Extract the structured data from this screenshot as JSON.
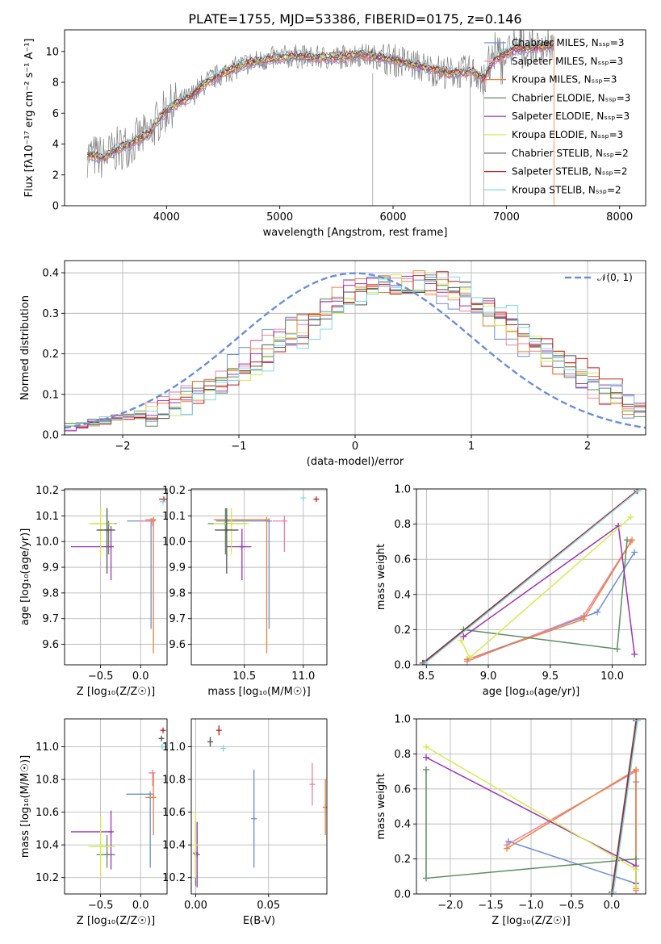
{
  "title": "PLATE=1755, MJD=53386, FIBERID=0175, z=0.146",
  "colors": {
    "Chabrier MILES": "#6b8fd6",
    "Salpeter MILES": "#ee82a8",
    "Kroupa MILES": "#f0813a",
    "Chabrier ELODIE": "#5e8e5e",
    "Salpeter ELODIE": "#9b35b6",
    "Kroupa ELODIE": "#d4ec4e",
    "Chabrier STELIB": "#555555",
    "Salpeter STELIB": "#c21f1f",
    "Kroupa STELIB": "#80d8e6",
    "data": "#808080"
  },
  "chart_data": [
    {
      "id": "spectrum",
      "type": "line",
      "xlabel": "wavelength [Angstrom, rest frame]",
      "ylabel": "Flux [fλ10⁻¹⁷ erg cm⁻² s⁻¹ A⁻¹]",
      "xlim": [
        3100,
        8230
      ],
      "ylim": [
        0,
        11.4
      ],
      "xticks": [
        4000,
        5000,
        6000,
        7000,
        8000
      ],
      "yticks": [
        0,
        2,
        4,
        6,
        8,
        10
      ],
      "legend_position": "top-right",
      "legend": [
        "Chabrier MILES, N_SSP=3",
        "Salpeter MILES, N_SSP=3",
        "Kroupa MILES, N_SSP=3",
        "Chabrier ELODIE, N_SSP=3",
        "Salpeter ELODIE, N_SSP=3",
        "Kroupa ELODIE, N_SSP=3",
        "Chabrier STELIB, N_SSP=2",
        "Salpeter STELIB, N_SSP=2",
        "Kroupa STELIB, N_SSP=2"
      ],
      "continuum": {
        "x": [
          3300,
          3450,
          3550,
          3700,
          3850,
          3950,
          4050,
          4200,
          4350,
          4500,
          4700,
          4900,
          5100,
          5300,
          5500,
          5700,
          5900,
          6100,
          6300,
          6500,
          6700,
          6800,
          6900,
          7000,
          7100,
          7200,
          7300,
          7400
        ],
        "y": [
          3.3,
          3.1,
          3.6,
          4.1,
          4.7,
          5.8,
          6.5,
          7.0,
          8.0,
          8.6,
          9.2,
          9.5,
          9.7,
          9.6,
          9.6,
          9.8,
          9.6,
          9.3,
          8.9,
          8.6,
          8.7,
          8.2,
          9.5,
          9.9,
          10.2,
          10.2,
          10.3,
          10.4
        ]
      }
    },
    {
      "id": "residuals",
      "type": "line",
      "xlabel": "(data-model)/error",
      "ylabel": "Normed distribution",
      "xlim": [
        -2.5,
        2.5
      ],
      "ylim": [
        0,
        0.43
      ],
      "xticks": [
        -2,
        -1,
        0,
        1,
        2
      ],
      "yticks": [
        0.0,
        0.1,
        0.2,
        0.3,
        0.4
      ],
      "legend": [
        "𝒩(0, 1)"
      ],
      "legend_position": "top-right",
      "histogram_mean": 0.45,
      "histogram_sigma": 1.08
    },
    {
      "id": "age_Z",
      "type": "scatter",
      "xlabel": "Z [log₁₀(Z/Z☉)]",
      "ylabel": "age  [log₁₀(age/yr)]",
      "xlim": [
        -0.95,
        0.33
      ],
      "ylim": [
        9.52,
        10.205
      ],
      "xticks": [
        -0.5,
        0.0
      ],
      "yticks": [
        9.6,
        9.7,
        9.8,
        9.9,
        10.0,
        10.1,
        10.2
      ],
      "points": [
        {
          "model": "Chabrier MILES",
          "x": 0.13,
          "y": 10.08,
          "xerr": [
            0.3,
            0.03
          ],
          "yerr": [
            0.42,
            0.0
          ]
        },
        {
          "model": "Salpeter MILES",
          "x": 0.15,
          "y": 10.08,
          "xerr": [
            0.18,
            0.03
          ],
          "yerr": [
            0.02,
            0.0
          ]
        },
        {
          "model": "Kroupa MILES",
          "x": 0.16,
          "y": 10.085,
          "xerr": [
            0.1,
            0.03
          ],
          "yerr": [
            0.52,
            0.0
          ]
        },
        {
          "model": "Chabrier ELODIE",
          "x": -0.4,
          "y": 10.07,
          "xerr": [
            0.22,
            0.1
          ],
          "yerr": [
            0.12,
            0.0
          ]
        },
        {
          "model": "Salpeter ELODIE",
          "x": -0.37,
          "y": 9.98,
          "xerr": [
            0.5,
            0.0
          ],
          "yerr": [
            0.13,
            0.08
          ]
        },
        {
          "model": "Kroupa ELODIE",
          "x": -0.5,
          "y": 10.07,
          "xerr": [
            0.15,
            0.18
          ],
          "yerr": [
            0.13,
            0.06
          ]
        },
        {
          "model": "Chabrier STELIB",
          "x": -0.42,
          "y": 10.045,
          "xerr": [
            0.13,
            0.1
          ],
          "yerr": [
            0.17,
            0.085
          ]
        },
        {
          "model": "Salpeter STELIB",
          "x": 0.29,
          "y": 10.165,
          "xerr": [
            0.06,
            0.0
          ],
          "yerr": [
            0.0,
            0.0
          ]
        },
        {
          "model": "Kroupa STELIB",
          "x": 0.28,
          "y": 10.155,
          "xerr": [
            0.04,
            0.0
          ],
          "yerr": [
            0.0,
            0.0
          ]
        }
      ]
    },
    {
      "id": "age_mass",
      "type": "scatter",
      "xlabel": "mass [log₁₀(M/M☉)]",
      "ylabel": "",
      "xlim": [
        10.05,
        11.2
      ],
      "ylim": [
        9.52,
        10.205
      ],
      "xticks": [
        10.5,
        11.0
      ],
      "yticks": [
        9.6,
        9.7,
        9.8,
        9.9,
        10.0,
        10.1,
        10.2
      ],
      "points": [
        {
          "model": "Chabrier MILES",
          "x": 10.71,
          "y": 10.08,
          "xerr": [
            0.45,
            0.0
          ],
          "yerr": [
            0.42,
            0.0
          ]
        },
        {
          "model": "Salpeter MILES",
          "x": 10.84,
          "y": 10.08,
          "xerr": [
            0.1,
            0.02
          ],
          "yerr": [
            0.12,
            0.02
          ]
        },
        {
          "model": "Kroupa MILES",
          "x": 10.69,
          "y": 10.085,
          "xerr": [
            0.45,
            0.0
          ],
          "yerr": [
            0.52,
            0.0
          ]
        },
        {
          "model": "Chabrier ELODIE",
          "x": 10.34,
          "y": 10.07,
          "xerr": [
            0.15,
            0.18
          ],
          "yerr": [
            0.12,
            0.06
          ]
        },
        {
          "model": "Salpeter ELODIE",
          "x": 10.48,
          "y": 9.98,
          "xerr": [
            0.13,
            0.08
          ],
          "yerr": [
            0.13,
            0.07
          ]
        },
        {
          "model": "Kroupa ELODIE",
          "x": 10.39,
          "y": 10.07,
          "xerr": [
            0.15,
            0.15
          ],
          "yerr": [
            0.12,
            0.06
          ]
        },
        {
          "model": "Chabrier STELIB",
          "x": 10.35,
          "y": 10.045,
          "xerr": [
            0.1,
            0.1
          ],
          "yerr": [
            0.17,
            0.085
          ]
        },
        {
          "model": "Salpeter STELIB",
          "x": 11.11,
          "y": 10.165,
          "xerr": [
            0.0,
            0.0
          ],
          "yerr": [
            0.0,
            0.0
          ]
        },
        {
          "model": "Kroupa STELIB",
          "x": 11.0,
          "y": 10.17,
          "xerr": [
            0.0,
            0.0
          ],
          "yerr": [
            0.0,
            0.0
          ]
        }
      ]
    },
    {
      "id": "mass_weight_age",
      "type": "line",
      "xlabel": "age  [log₁₀(age/yr)]",
      "ylabel": "mass weight",
      "xlim": [
        8.42,
        10.27
      ],
      "ylim": [
        0,
        1
      ],
      "xticks": [
        8.5,
        9.0,
        9.5,
        10.0
      ],
      "yticks": [
        0.0,
        0.2,
        0.4,
        0.6,
        0.8,
        1.0
      ],
      "series": [
        {
          "model": "Chabrier MILES",
          "x": [
            8.83,
            9.88,
            10.18
          ],
          "y": [
            0.03,
            0.3,
            0.64
          ]
        },
        {
          "model": "Salpeter MILES",
          "x": [
            8.83,
            9.77,
            10.15
          ],
          "y": [
            0.02,
            0.28,
            0.7
          ]
        },
        {
          "model": "Kroupa MILES",
          "x": [
            8.83,
            9.77,
            10.16
          ],
          "y": [
            0.03,
            0.26,
            0.71
          ]
        },
        {
          "model": "Chabrier ELODIE",
          "x": [
            8.8,
            10.04,
            10.12
          ],
          "y": [
            0.2,
            0.09,
            0.71
          ]
        },
        {
          "model": "Salpeter ELODIE",
          "x": [
            8.8,
            10.05,
            10.18
          ],
          "y": [
            0.16,
            0.79,
            0.06
          ]
        },
        {
          "model": "Kroupa ELODIE",
          "x": [
            8.78,
            8.85,
            10.15
          ],
          "y": [
            0.14,
            0.04,
            0.84
          ]
        },
        {
          "model": "Chabrier STELIB",
          "x": [
            8.47,
            10.2
          ],
          "y": [
            0.01,
            0.99
          ]
        },
        {
          "model": "Salpeter STELIB",
          "x": [
            8.48,
            10.2
          ],
          "y": [
            0.01,
            0.99
          ]
        },
        {
          "model": "Kroupa STELIB",
          "x": [
            8.49,
            10.21
          ],
          "y": [
            0.01,
            0.99
          ]
        }
      ]
    },
    {
      "id": "mass_Z",
      "type": "scatter",
      "xlabel": "Z [log₁₀(Z/Z☉)]",
      "ylabel": "mass [log₁₀(M/M☉)]",
      "xlim": [
        -0.95,
        0.33
      ],
      "ylim": [
        10.1,
        11.17
      ],
      "xticks": [
        -0.5,
        0.0
      ],
      "yticks": [
        10.2,
        10.4,
        10.6,
        10.8,
        11.0
      ],
      "points": [
        {
          "model": "Chabrier MILES",
          "x": 0.12,
          "y": 10.71,
          "xerr": [
            0.3,
            0.0
          ],
          "yerr": [
            0.45,
            0.0
          ]
        },
        {
          "model": "Salpeter MILES",
          "x": 0.15,
          "y": 10.84,
          "xerr": [
            0.05,
            0.02
          ],
          "yerr": [
            0.08,
            0.02
          ]
        },
        {
          "model": "Kroupa MILES",
          "x": 0.16,
          "y": 10.69,
          "xerr": [
            0.1,
            0.0
          ],
          "yerr": [
            0.23,
            0.15
          ]
        },
        {
          "model": "Chabrier ELODIE",
          "x": -0.42,
          "y": 10.34,
          "xerr": [
            0.13,
            0.1
          ],
          "yerr": [
            0.08,
            0.12
          ]
        },
        {
          "model": "Salpeter ELODIE",
          "x": -0.37,
          "y": 10.48,
          "xerr": [
            0.5,
            0.0
          ],
          "yerr": [
            0.23,
            0.13
          ]
        },
        {
          "model": "Kroupa ELODIE",
          "x": -0.5,
          "y": 10.39,
          "xerr": [
            0.15,
            0.18
          ],
          "yerr": [
            0.19,
            0.18
          ]
        },
        {
          "model": "Chabrier STELIB",
          "x": 0.26,
          "y": 11.05,
          "xerr": [
            0.0,
            0.0
          ],
          "yerr": [
            0.0,
            0.0
          ]
        },
        {
          "model": "Salpeter STELIB",
          "x": 0.28,
          "y": 11.1,
          "xerr": [
            0.0,
            0.0
          ],
          "yerr": [
            0.0,
            0.0
          ]
        },
        {
          "model": "Kroupa STELIB",
          "x": 0.27,
          "y": 11.0,
          "xerr": [
            0.0,
            0.0
          ],
          "yerr": [
            0.0,
            0.0
          ]
        }
      ]
    },
    {
      "id": "mass_ebv",
      "type": "scatter",
      "xlabel": "E(B-V)",
      "ylabel": "",
      "xlim": [
        -0.003,
        0.09
      ],
      "ylim": [
        10.1,
        11.17
      ],
      "xticks": [
        0.0,
        0.05
      ],
      "yticks": [
        10.2,
        10.4,
        10.6,
        10.8,
        11.0
      ],
      "points": [
        {
          "model": "Chabrier MILES",
          "x": 0.04,
          "y": 10.56,
          "xerr": [
            0,
            0
          ],
          "yerr": [
            0.3,
            0.3
          ]
        },
        {
          "model": "Salpeter MILES",
          "x": 0.08,
          "y": 10.77,
          "xerr": [
            0,
            0
          ],
          "yerr": [
            0.13,
            0.13
          ]
        },
        {
          "model": "Kroupa MILES",
          "x": 0.089,
          "y": 10.63,
          "xerr": [
            0,
            0
          ],
          "yerr": [
            0.17,
            0.17
          ]
        },
        {
          "model": "Chabrier ELODIE",
          "x": 0.0,
          "y": 10.35,
          "xerr": [
            0,
            0
          ],
          "yerr": [
            0.2,
            0.2
          ]
        },
        {
          "model": "Salpeter ELODIE",
          "x": 0.001,
          "y": 10.34,
          "xerr": [
            0,
            0
          ],
          "yerr": [
            0.2,
            0.2
          ]
        },
        {
          "model": "Kroupa ELODIE",
          "x": 0.0,
          "y": 10.4,
          "xerr": [
            0,
            0
          ],
          "yerr": [
            0.2,
            0.2
          ]
        },
        {
          "model": "Chabrier STELIB",
          "x": 0.01,
          "y": 11.03,
          "xerr": [
            0,
            0
          ],
          "yerr": [
            0.03,
            0.03
          ]
        },
        {
          "model": "Salpeter STELIB",
          "x": 0.016,
          "y": 11.1,
          "xerr": [
            0,
            0
          ],
          "yerr": [
            0.03,
            0.03
          ]
        },
        {
          "model": "Kroupa STELIB",
          "x": 0.019,
          "y": 10.99,
          "xerr": [
            0,
            0
          ],
          "yerr": [
            0.02,
            0.02
          ]
        }
      ]
    },
    {
      "id": "mass_weight_Z",
      "type": "line",
      "xlabel": "Z [log₁₀(Z/Z☉)]",
      "ylabel": "mass weight",
      "xlim": [
        -2.42,
        0.42
      ],
      "ylim": [
        0,
        1
      ],
      "xticks": [
        -2.0,
        -1.5,
        -1.0,
        -0.5,
        0.0
      ],
      "yticks": [
        0.0,
        0.2,
        0.4,
        0.6,
        0.8,
        1.0
      ],
      "series": [
        {
          "model": "Chabrier MILES",
          "x": [
            -1.28,
            0.3,
            0.3
          ],
          "y": [
            0.3,
            0.06,
            0.64
          ]
        },
        {
          "model": "Salpeter MILES",
          "x": [
            -1.3,
            0.3,
            0.3
          ],
          "y": [
            0.28,
            0.7,
            0.02
          ]
        },
        {
          "model": "Kroupa MILES",
          "x": [
            -1.3,
            0.3,
            0.3
          ],
          "y": [
            0.26,
            0.71,
            0.03
          ]
        },
        {
          "model": "Chabrier ELODIE",
          "x": [
            -2.3,
            -2.3,
            0.3
          ],
          "y": [
            0.71,
            0.09,
            0.2
          ]
        },
        {
          "model": "Salpeter ELODIE",
          "x": [
            -2.3,
            0.3,
            0.3
          ],
          "y": [
            0.78,
            0.16,
            0.06
          ]
        },
        {
          "model": "Kroupa ELODIE",
          "x": [
            -2.3,
            0.3,
            0.3
          ],
          "y": [
            0.84,
            0.14,
            0.04
          ]
        },
        {
          "model": "Chabrier STELIB",
          "x": [
            0.0,
            0.3
          ],
          "y": [
            0.01,
            0.99
          ]
        },
        {
          "model": "Salpeter STELIB",
          "x": [
            0.01,
            0.31
          ],
          "y": [
            0.01,
            0.99
          ]
        },
        {
          "model": "Kroupa STELIB",
          "x": [
            0.02,
            0.32
          ],
          "y": [
            0.01,
            0.99
          ]
        }
      ]
    }
  ]
}
